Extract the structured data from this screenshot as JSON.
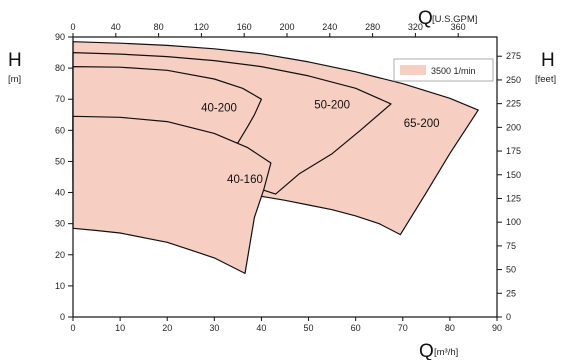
{
  "chart_data": {
    "type": "area",
    "title": "",
    "x_axis": {
      "label_main": "Q",
      "label_unit": "[m³/h]",
      "min": 0,
      "max": 90,
      "ticks": [
        0,
        10,
        20,
        30,
        40,
        50,
        60,
        70,
        80,
        90
      ]
    },
    "x2_axis": {
      "label_main": "Q",
      "label_unit": "[U.S.GPM]",
      "ticks": [
        0,
        40,
        80,
        120,
        160,
        200,
        240,
        280,
        320,
        360
      ]
    },
    "y_axis": {
      "label_main": "H",
      "label_unit": "[m]",
      "min": 0,
      "max": 90,
      "ticks": [
        0,
        10,
        20,
        30,
        40,
        50,
        60,
        70,
        80,
        90
      ]
    },
    "y2_axis": {
      "label_main": "H",
      "label_unit": "[feet]",
      "ticks": [
        0,
        25,
        50,
        75,
        100,
        125,
        150,
        175,
        200,
        225,
        250,
        275
      ]
    },
    "legend": {
      "label": "3500 1/min",
      "color": "#f7cfc2",
      "position": "top-right"
    },
    "fill_color": "#f7cfc2",
    "series": [
      {
        "name": "65-200",
        "label_at": [
          74,
          62
        ],
        "polygon": [
          [
            0,
            88.5
          ],
          [
            10,
            88
          ],
          [
            20,
            87.3
          ],
          [
            30,
            86.2
          ],
          [
            40,
            84.6
          ],
          [
            50,
            82
          ],
          [
            60,
            78.8
          ],
          [
            70,
            75
          ],
          [
            80,
            70.3
          ],
          [
            86,
            66.5
          ],
          [
            80,
            52.6
          ],
          [
            75,
            40
          ],
          [
            69.5,
            26.5
          ],
          [
            65,
            30
          ],
          [
            60,
            32.5
          ],
          [
            55,
            34.5
          ],
          [
            50,
            36
          ],
          [
            45,
            37.5
          ],
          [
            40,
            38.8
          ],
          [
            35,
            40
          ],
          [
            33,
            40.5
          ],
          [
            0,
            40.5
          ]
        ]
      },
      {
        "name": "50-200",
        "label_at": [
          55,
          68
        ],
        "polygon": [
          [
            0,
            85
          ],
          [
            10,
            84.5
          ],
          [
            20,
            83.7
          ],
          [
            30,
            82.4
          ],
          [
            40,
            80.5
          ],
          [
            50,
            77.5
          ],
          [
            60,
            73.5
          ],
          [
            67.5,
            68.5
          ],
          [
            61,
            60
          ],
          [
            55,
            52.5
          ],
          [
            48,
            46
          ],
          [
            43,
            39.5
          ],
          [
            38,
            42
          ],
          [
            33,
            44
          ],
          [
            0,
            44
          ]
        ]
      },
      {
        "name": "40-200",
        "label_at": [
          31,
          67
        ],
        "polygon": [
          [
            0,
            80.5
          ],
          [
            10,
            80.3
          ],
          [
            20,
            79.3
          ],
          [
            30,
            76.5
          ],
          [
            36,
            73.5
          ],
          [
            40,
            70
          ],
          [
            38.5,
            65
          ],
          [
            37,
            61
          ],
          [
            35,
            56
          ],
          [
            0,
            56
          ]
        ]
      },
      {
        "name": "40-160",
        "label_at": [
          36.5,
          44
        ],
        "polygon": [
          [
            0,
            64.5
          ],
          [
            10,
            64.2
          ],
          [
            20,
            62.8
          ],
          [
            30,
            59
          ],
          [
            37,
            54.5
          ],
          [
            42,
            49.5
          ],
          [
            40.5,
            41
          ],
          [
            38.5,
            32
          ],
          [
            36.5,
            14
          ],
          [
            30,
            19
          ],
          [
            25,
            21.5
          ],
          [
            20,
            24
          ],
          [
            10,
            27
          ],
          [
            5,
            27.8
          ],
          [
            0,
            28.5
          ]
        ]
      }
    ]
  }
}
